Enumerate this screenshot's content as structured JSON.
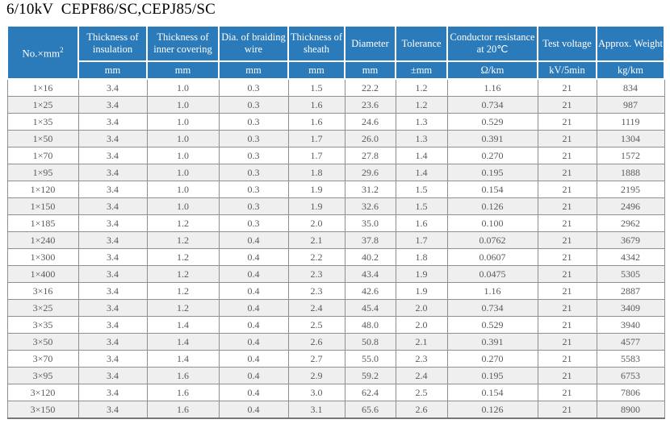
{
  "title": "6/10kV  CEPF86/SC,CEPJ85/SC",
  "table": {
    "size_header": {
      "main": "No.×mm",
      "sup": "2"
    },
    "columns": [
      {
        "label": "Thickness of insulation",
        "unit": "mm"
      },
      {
        "label": "Thickness of inner covering",
        "unit": "mm"
      },
      {
        "label": "Dia. of braiding wire",
        "unit": "mm"
      },
      {
        "label": "Thickness of sheath",
        "unit": "mm"
      },
      {
        "label": "Diameter",
        "unit": "mm"
      },
      {
        "label": "Tolerance",
        "unit": "±mm"
      },
      {
        "label": "Conductor resistance at 20℃",
        "unit": "Ω/km"
      },
      {
        "label": "Test voltage",
        "unit": "kV/5min"
      },
      {
        "label": "Approx. Weight",
        "unit": "kg/km"
      }
    ],
    "rows": [
      [
        "1×16",
        "3.4",
        "1.0",
        "0.3",
        "1.5",
        "22.2",
        "1.2",
        "1.16",
        "21",
        "834"
      ],
      [
        "1×25",
        "3.4",
        "1.0",
        "0.3",
        "1.6",
        "23.6",
        "1.2",
        "0.734",
        "21",
        "987"
      ],
      [
        "1×35",
        "3.4",
        "1.0",
        "0.3",
        "1.6",
        "24.6",
        "1.3",
        "0.529",
        "21",
        "1119"
      ],
      [
        "1×50",
        "3.4",
        "1.0",
        "0.3",
        "1.7",
        "26.0",
        "1.3",
        "0.391",
        "21",
        "1304"
      ],
      [
        "1×70",
        "3.4",
        "1.0",
        "0.3",
        "1.7",
        "27.8",
        "1.4",
        "0.270",
        "21",
        "1572"
      ],
      [
        "1×95",
        "3.4",
        "1.0",
        "0.3",
        "1.8",
        "29.6",
        "1.4",
        "0.195",
        "21",
        "1888"
      ],
      [
        "1×120",
        "3.4",
        "1.0",
        "0.3",
        "1.9",
        "31.2",
        "1.5",
        "0.154",
        "21",
        "2195"
      ],
      [
        "1×150",
        "3.4",
        "1.0",
        "0.3",
        "1.9",
        "32.6",
        "1.5",
        "0.126",
        "21",
        "2496"
      ],
      [
        "1×185",
        "3.4",
        "1.2",
        "0.3",
        "2.0",
        "35.0",
        "1.6",
        "0.100",
        "21",
        "2962"
      ],
      [
        "1×240",
        "3.4",
        "1.2",
        "0.4",
        "2.1",
        "37.8",
        "1.7",
        "0.0762",
        "21",
        "3679"
      ],
      [
        "1×300",
        "3.4",
        "1.2",
        "0.4",
        "2.2",
        "40.2",
        "1.8",
        "0.0607",
        "21",
        "4342"
      ],
      [
        "1×400",
        "3.4",
        "1.2",
        "0.4",
        "2.3",
        "43.4",
        "1.9",
        "0.0475",
        "21",
        "5305"
      ],
      [
        "3×16",
        "3.4",
        "1.2",
        "0.4",
        "2.3",
        "42.6",
        "1.9",
        "1.16",
        "21",
        "2887"
      ],
      [
        "3×25",
        "3.4",
        "1.2",
        "0.4",
        "2.4",
        "45.4",
        "2.0",
        "0.734",
        "21",
        "3409"
      ],
      [
        "3×35",
        "3.4",
        "1.4",
        "0.4",
        "2.5",
        "48.0",
        "2.0",
        "0.529",
        "21",
        "3940"
      ],
      [
        "3×50",
        "3.4",
        "1.4",
        "0.4",
        "2.6",
        "50.8",
        "2.1",
        "0.391",
        "21",
        "4577"
      ],
      [
        "3×70",
        "3.4",
        "1.4",
        "0.4",
        "2.7",
        "55.0",
        "2.3",
        "0.270",
        "21",
        "5583"
      ],
      [
        "3×95",
        "3.4",
        "1.6",
        "0.4",
        "2.9",
        "59.2",
        "2.4",
        "0.195",
        "21",
        "6753"
      ],
      [
        "3×120",
        "3.4",
        "1.6",
        "0.4",
        "3.0",
        "62.4",
        "2.5",
        "0.154",
        "21",
        "7806"
      ],
      [
        "3×150",
        "3.4",
        "1.6",
        "0.4",
        "3.1",
        "65.6",
        "2.6",
        "0.126",
        "21",
        "8900"
      ]
    ]
  },
  "colors": {
    "header_bg": "#2b7ab9",
    "header_text": "#ffffff",
    "row_alt_bg": "#efefef",
    "border": "#8f8f8f",
    "data_text": "#5a5a5a",
    "title_text": "#000000"
  }
}
